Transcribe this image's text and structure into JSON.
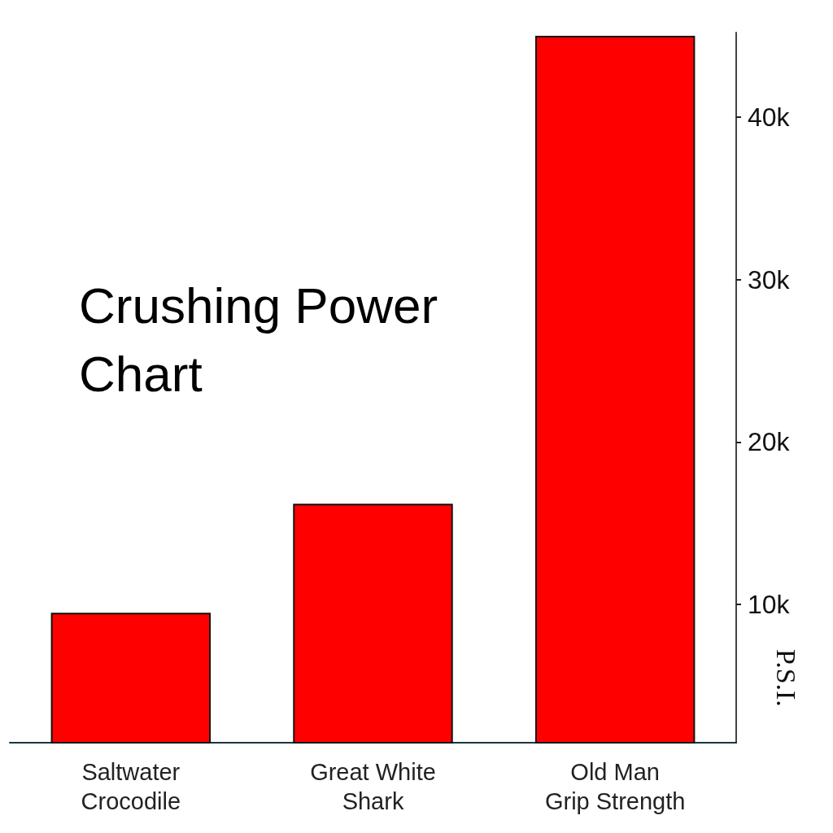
{
  "chart_data": {
    "type": "bar",
    "title": "Crushing Power\nChart",
    "ylabel": "P.S.I.",
    "categories": [
      "Saltwater\nCrocodile",
      "Great White\nShark",
      "Old Man\nGrip Strength"
    ],
    "values": [
      9500,
      16200,
      45000
    ],
    "color": "#ff0000",
    "ylim": [
      1500,
      45200
    ],
    "yticks": [
      {
        "value": 10000,
        "label": "10k"
      },
      {
        "value": 20000,
        "label": "20k"
      },
      {
        "value": 30000,
        "label": "30k"
      },
      {
        "value": 40000,
        "label": "40k"
      }
    ],
    "grid": false
  }
}
